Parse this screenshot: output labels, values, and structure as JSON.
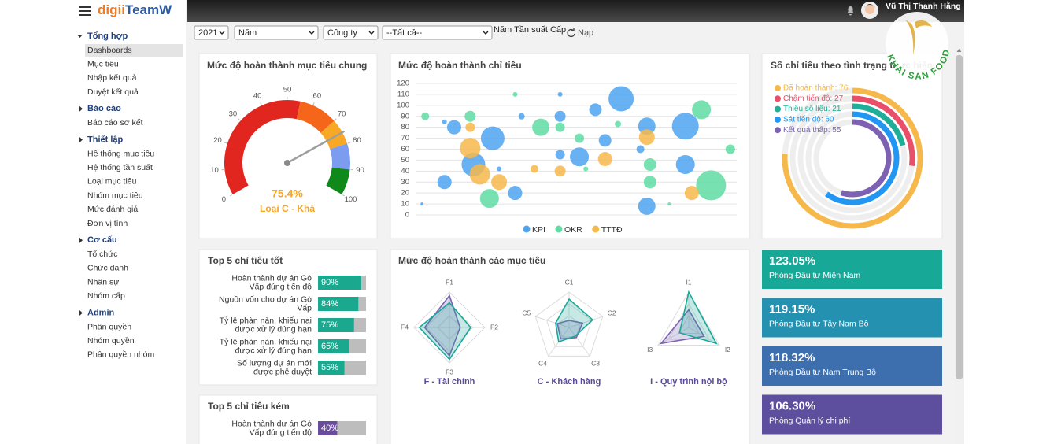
{
  "header": {
    "logo_prefix": "digii",
    "logo_suffix": "TeamW",
    "user": "Vũ Thị Thanh Hằng",
    "watermark": "KHAI SAN FOOD"
  },
  "sidebar": {
    "groups": [
      {
        "title": "Tổng hợp",
        "items": [
          "Dashboards",
          "Mục tiêu",
          "Nhập kết quả",
          "Duyệt kết quả"
        ]
      },
      {
        "title": "Báo cáo",
        "items": [
          "Báo cáo sơ kết"
        ]
      },
      {
        "title": "Thiết lập",
        "items": [
          "Hệ thống mục tiêu",
          "Hệ thống tần suất",
          "Loại mục tiêu",
          "Nhóm mục tiêu",
          "Mức đánh giá",
          "Đơn vị tính"
        ]
      },
      {
        "title": "Cơ cấu",
        "items": [
          "Tổ chức",
          "Chức danh",
          "Nhân sự",
          "Nhóm cấp"
        ]
      },
      {
        "title": "Admin",
        "items": [
          "Phân quyền",
          "Nhóm quyền",
          "Phân quyền nhóm"
        ]
      }
    ]
  },
  "filters": {
    "year": "2021",
    "period": "Năm",
    "company": "Công ty",
    "scope": "--Tất cả--",
    "hint": "Năm Tần suất Cấp",
    "load": "Nạp"
  },
  "chart_data": [
    {
      "type": "gauge",
      "title": "Mức độ hoàn thành mục tiêu chung",
      "value": 75.4,
      "value_label": "75.4%",
      "rating": "Loại C - Khá",
      "ylim": [
        0,
        100
      ],
      "yticks": [
        0,
        10,
        20,
        30,
        40,
        50,
        60,
        70,
        80,
        90,
        100
      ],
      "bands": [
        {
          "from": 0,
          "to": 55,
          "color": "#e0261f"
        },
        {
          "from": 55,
          "to": 70,
          "color": "#f5661a"
        },
        {
          "from": 70,
          "to": 80,
          "color": "#f9a825"
        },
        {
          "from": 80,
          "to": 90,
          "color": "#7c9cf0"
        },
        {
          "from": 90,
          "to": 100,
          "color": "#0f8a1a"
        }
      ]
    },
    {
      "type": "bubble",
      "title": "Mức độ hoàn thành chỉ tiêu",
      "ylim": [
        0,
        120
      ],
      "yticks": [
        0,
        10,
        20,
        30,
        40,
        50,
        60,
        70,
        80,
        90,
        100,
        110,
        120
      ],
      "xlim": [
        0,
        100
      ],
      "grid": true,
      "series": [
        {
          "name": "KPI",
          "color": "#4da3f0",
          "x": [
            2,
            9,
            9,
            12,
            18,
            24,
            26,
            31,
            33,
            45,
            45,
            45,
            51,
            56,
            59,
            64,
            70,
            72,
            72,
            84,
            84
          ],
          "values": [
            10,
            85,
            30,
            80,
            46,
            70,
            42,
            20,
            90,
            110,
            90,
            55,
            53,
            96,
            68,
            106,
            60,
            81,
            8,
            81,
            46
          ],
          "sizes": [
            2,
            3,
            9,
            9,
            15,
            15,
            3,
            9,
            4,
            3,
            7,
            6,
            12,
            8,
            8,
            16,
            5,
            11,
            11,
            17,
            12
          ]
        },
        {
          "name": "OKR",
          "color": "#5fdca3",
          "x": [
            3,
            17,
            23,
            31,
            39,
            45,
            51,
            53,
            63,
            73,
            73,
            79,
            89,
            92,
            98
          ],
          "values": [
            90,
            90,
            15,
            110,
            80,
            80,
            70,
            42,
            83,
            46,
            30,
            10,
            96,
            27,
            60
          ],
          "sizes": [
            5,
            7,
            12,
            3,
            11,
            6,
            6,
            3,
            4,
            8,
            8,
            2,
            12,
            19,
            6
          ]
        },
        {
          "name": "TTTĐ",
          "color": "#f7b84b",
          "x": [
            17,
            17,
            20,
            26,
            37,
            45,
            59,
            72,
            86
          ],
          "values": [
            80,
            61,
            37,
            30,
            42,
            40,
            51,
            71,
            20
          ],
          "sizes": [
            6,
            13,
            13,
            10,
            5,
            7,
            9,
            10,
            9
          ]
        }
      ]
    },
    {
      "type": "radial_bar",
      "title": "Số chỉ tiêu theo tình trạng thực hiện",
      "ylim": [
        0,
        100
      ],
      "values": [
        76,
        27,
        21,
        60,
        55
      ],
      "value_labels": [
        "Đã hoàn thành: 76",
        "Chậm tiến độ: 27",
        "Thiếu số liệu: 21",
        "Sát tiến độ: 60",
        "Kết quả thấp: 55"
      ],
      "colors": [
        "#f7b84b",
        "#ea4f6a",
        "#1fae97",
        "#2196f3",
        "#7d62b3"
      ]
    },
    {
      "type": "hbar",
      "title": "Top 5 chỉ tiêu tốt",
      "xlim": [
        0,
        100
      ],
      "color": "#1aa88f",
      "categories": [
        "Hoàn thành dự án Gò Vấp đúng tiến độ",
        "Nguồn vốn cho dự án Gò Vấp",
        "Tỷ lệ phàn nàn, khiếu nại được xử lý đúng hạn",
        "Tỷ lệ phàn nàn, khiếu nại được xử lý đúng hạn",
        "Số lượng dự án mới được phê duyệt"
      ],
      "values": [
        90,
        84,
        75,
        65,
        55
      ],
      "value_labels": [
        "90%",
        "84%",
        "75%",
        "65%",
        "55%"
      ]
    },
    {
      "type": "radar",
      "title": "Mức độ hoàn thành các mục tiêu",
      "ylim": [
        0,
        100
      ],
      "charts": [
        {
          "caption": "F - Tài chính",
          "categories": [
            "F1",
            "F2",
            "F3",
            "F4"
          ],
          "series": [
            {
              "color": "#7d62b3",
              "values": [
                90,
                30,
                80,
                70
              ]
            },
            {
              "color": "#1aa898",
              "values": [
                70,
                60,
                90,
                85
              ]
            }
          ]
        },
        {
          "caption": "C - Khách hàng",
          "categories": [
            "C1",
            "C2",
            "C3",
            "C4",
            "C5"
          ],
          "series": [
            {
              "color": "#7d62b3",
              "values": [
                20,
                40,
                35,
                40,
                35
              ]
            },
            {
              "color": "#1aa898",
              "values": [
                80,
                70,
                30,
                50,
                40
              ]
            }
          ]
        },
        {
          "caption": "I - Quy trình nội bộ",
          "categories": [
            "I1",
            "I2",
            "I3"
          ],
          "series": [
            {
              "color": "#7d62b3",
              "values": [
                50,
                50,
                90
              ]
            },
            {
              "color": "#1aa898",
              "values": [
                100,
                90,
                30
              ]
            }
          ]
        }
      ]
    },
    {
      "type": "hbar",
      "title": "Top 5 chỉ tiêu kém",
      "xlim": [
        0,
        100
      ],
      "color": "#6a4c9c",
      "categories": [
        "Hoàn thành dự án Gò Vấp đúng tiến độ"
      ],
      "values": [
        40
      ],
      "value_labels": [
        "40%"
      ]
    }
  ],
  "stats": [
    {
      "value": "123.05%",
      "label": "Phòng Đầu tư Miền Nam",
      "color": "#17a898"
    },
    {
      "value": "119.15%",
      "label": "Phòng Đầu tư Tây Nam Bộ",
      "color": "#2491b0"
    },
    {
      "value": "118.32%",
      "label": "Phòng Đầu tư Nam Trung Bộ",
      "color": "#3d6fae"
    },
    {
      "value": "106.30%",
      "label": "Phòng Quản lý chi phí",
      "color": "#5d4e9e"
    }
  ]
}
